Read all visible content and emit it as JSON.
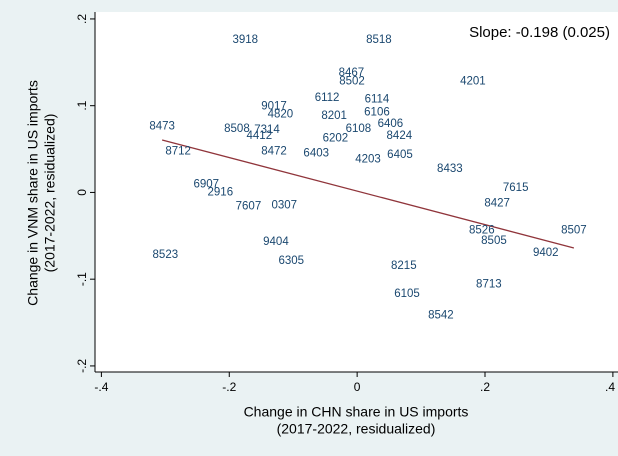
{
  "chart_data": {
    "type": "scatter",
    "annotation": "Slope: -0.198 (0.025)",
    "x_label": [
      "Change in CHN share in US imports",
      "(2017-2022, residualized)"
    ],
    "y_label": [
      "Change in VNM share in US imports",
      "(2017-2022, residualized)"
    ],
    "xlim": [
      -0.41,
      0.408
    ],
    "ylim": [
      -0.207,
      0.208
    ],
    "xticks": [
      {
        "value": -0.4,
        "label": "-.4"
      },
      {
        "value": -0.2,
        "label": "-.2"
      },
      0,
      {
        "value": 0.2,
        "label": ".2"
      },
      {
        "value": 0.4,
        "label": ".4"
      }
    ],
    "yticks": [
      {
        "value": -0.2,
        "label": "-.2"
      },
      {
        "value": -0.1,
        "label": "-.1"
      },
      0,
      {
        "value": 0.1,
        "label": ".1"
      },
      {
        "value": 0.2,
        "label": ".2"
      }
    ],
    "grid": false,
    "points": {
      "color": "#1a476f",
      "labels": [
        "3918",
        "8518",
        "8467",
        "8502",
        "4201",
        "6112",
        "6114",
        "9017",
        "4820",
        "8201",
        "6106",
        "8473",
        "6406",
        "8508",
        "7314",
        "4412",
        "6108",
        "8424",
        "6202",
        "8712",
        "8472",
        "6403",
        "6405",
        "4203",
        "8433",
        "6907",
        "2916",
        "7615",
        "0307",
        "8427",
        "7607",
        "8526",
        "8507",
        "9404",
        "8505",
        "8523",
        "9402",
        "6305",
        "8215",
        "8713",
        "6105",
        "8542"
      ],
      "x": [
        -0.175,
        0.034,
        -0.009,
        -0.008,
        0.181,
        -0.047,
        0.031,
        -0.13,
        -0.12,
        -0.036,
        0.031,
        -0.305,
        0.052,
        -0.188,
        -0.141,
        -0.153,
        0.002,
        0.066,
        -0.034,
        -0.28,
        -0.13,
        -0.064,
        0.067,
        0.017,
        0.145,
        -0.236,
        -0.214,
        0.248,
        -0.114,
        0.219,
        -0.17,
        0.195,
        0.339,
        -0.127,
        0.214,
        -0.3,
        0.295,
        -0.103,
        0.073,
        0.206,
        0.078,
        0.131
      ],
      "y": [
        0.176,
        0.176,
        0.138,
        0.128,
        0.128,
        0.109,
        0.107,
        0.099,
        0.09,
        0.088,
        0.092,
        0.076,
        0.079,
        0.073,
        0.072,
        0.065,
        0.073,
        0.065,
        0.062,
        0.047,
        0.047,
        0.045,
        0.043,
        0.038,
        0.027,
        0.009,
        0,
        0.005,
        -0.015,
        -0.013,
        -0.016,
        -0.044,
        -0.044,
        -0.057,
        -0.056,
        -0.072,
        -0.07,
        -0.079,
        -0.085,
        -0.106,
        -0.117,
        -0.142
      ]
    },
    "fit_line": {
      "color": "#90353b",
      "x": [
        -0.305,
        0.339
      ],
      "y": [
        0.0605,
        -0.064
      ]
    }
  }
}
